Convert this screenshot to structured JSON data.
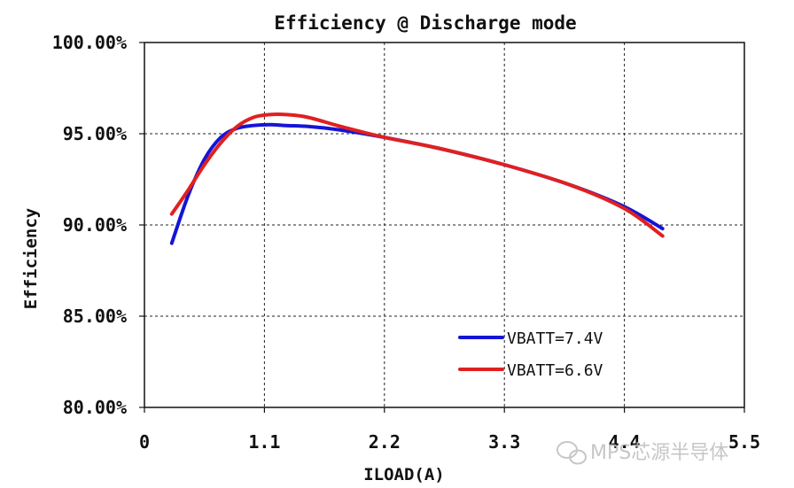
{
  "chart_data": {
    "type": "line",
    "title": "Efficiency @ Discharge mode",
    "xlabel": "ILOAD(A)",
    "ylabel": "Efficiency",
    "xlim": [
      0,
      5.5
    ],
    "ylim": [
      80,
      100
    ],
    "x_ticks": [
      "0",
      "1.1",
      "2.2",
      "3.3",
      "4.4",
      "5.5"
    ],
    "y_ticks": [
      "80.00%",
      "85.00%",
      "90.00%",
      "95.00%",
      "100.00%"
    ],
    "grid": true,
    "legend_position": "bottom-right",
    "series": [
      {
        "name": "VBATT=7.4V",
        "color": "#1515d6",
        "x": [
          0.25,
          0.4,
          0.55,
          0.7,
          0.85,
          1.0,
          1.15,
          1.3,
          1.5,
          1.8,
          2.2,
          2.7,
          3.3,
          3.9,
          4.4,
          4.75
        ],
        "y": [
          89.0,
          91.6,
          93.6,
          94.8,
          95.3,
          95.45,
          95.5,
          95.45,
          95.4,
          95.2,
          94.8,
          94.2,
          93.3,
          92.2,
          91.0,
          89.8
        ]
      },
      {
        "name": "VBATT=6.6V",
        "color": "#e02020",
        "x": [
          0.25,
          0.4,
          0.55,
          0.7,
          0.85,
          1.0,
          1.15,
          1.3,
          1.5,
          1.8,
          2.2,
          2.7,
          3.3,
          3.9,
          4.4,
          4.75
        ],
        "y": [
          90.6,
          91.9,
          93.3,
          94.5,
          95.4,
          95.9,
          96.05,
          96.05,
          95.9,
          95.4,
          94.8,
          94.2,
          93.3,
          92.2,
          90.9,
          89.4
        ]
      }
    ]
  },
  "watermark": "MPS芯源半导体"
}
